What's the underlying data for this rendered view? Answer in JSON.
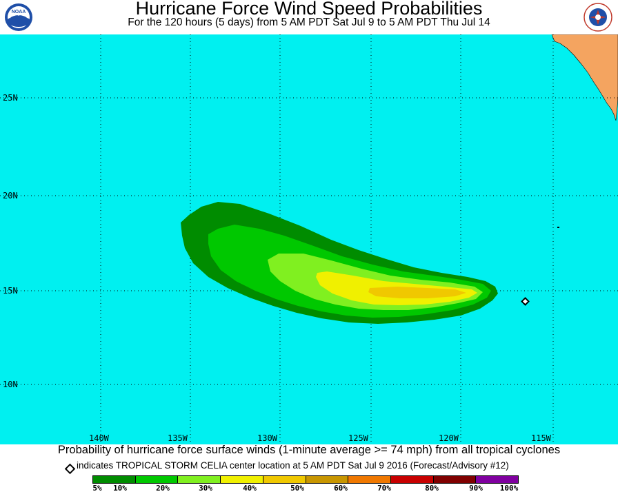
{
  "title": "Hurricane Force Wind Speed Probabilities",
  "subtitle": "For the 120 hours (5 days) from 5 AM PDT Sat Jul 9 to 5 AM PDT Thu Jul 14",
  "logos": {
    "left": "NOAA",
    "right": "NATIONAL WEATHER SERVICE"
  },
  "map": {
    "ocean_color": "#00f0f0",
    "land_color": "#f4a460",
    "lat_labels": [
      "25N",
      "20N",
      "15N",
      "10N"
    ],
    "lon_labels": [
      "140W",
      "135W",
      "130W",
      "125W",
      "120W",
      "115W"
    ],
    "storm_marker": {
      "lat": 14.4,
      "lon": 115.2,
      "icon": "diamond-icon"
    }
  },
  "footer": {
    "description": "Probability of hurricane force surface winds (1-minute average >= 74 mph) from all tropical cyclones",
    "key_text": "indicates TROPICAL STORM CELIA center location at 5 AM PDT Sat Jul 9 2016 (Forecast/Advisory #12)"
  },
  "legend": {
    "colors": [
      "#008c00",
      "#00c800",
      "#80f020",
      "#f0f000",
      "#f0c800",
      "#c89600",
      "#f07800",
      "#c80000",
      "#800000",
      "#8000a0"
    ],
    "labels": [
      "5%",
      "10%",
      "20%",
      "30%",
      "40%",
      "50%",
      "60%",
      "70%",
      "80%",
      "90%",
      "100%"
    ]
  }
}
